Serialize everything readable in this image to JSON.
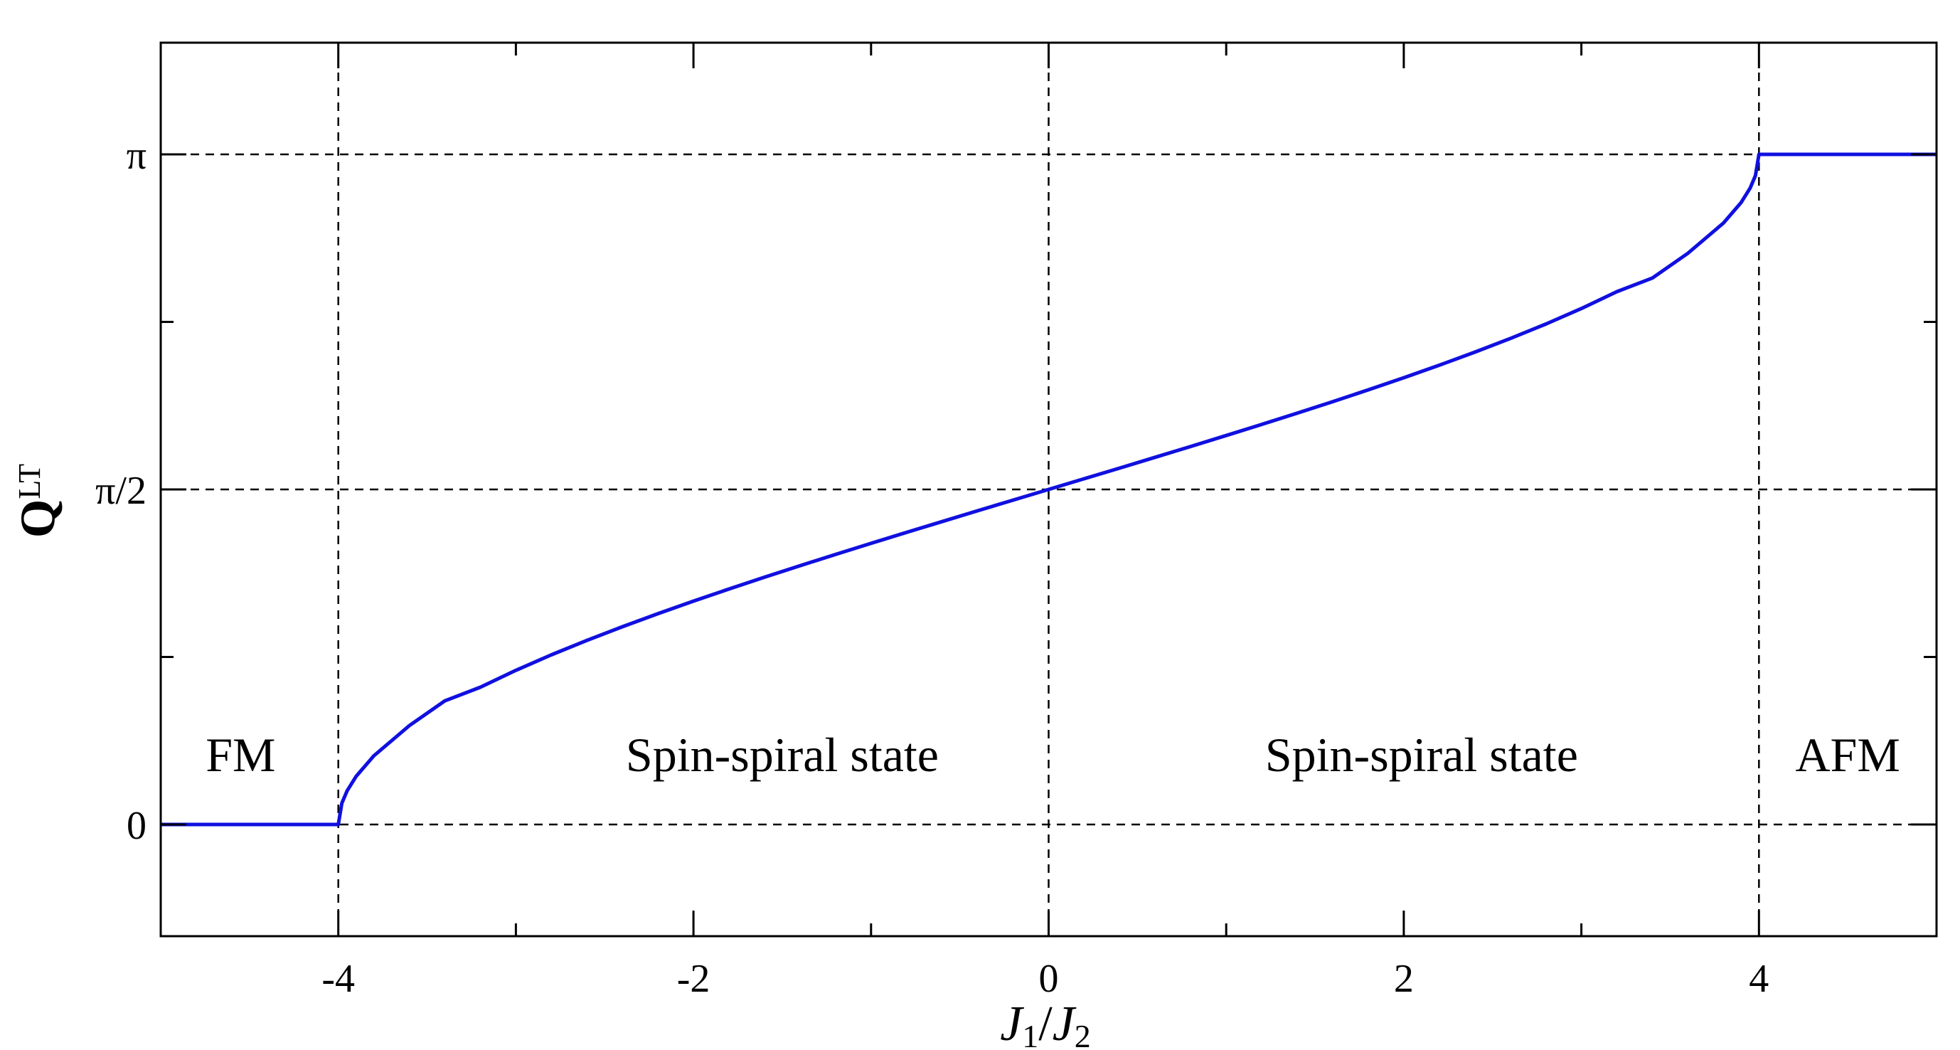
{
  "chart_data": {
    "type": "line",
    "title": "",
    "xlabel": {
      "italic_1": "J",
      "sub_1": "1",
      "sep": "/",
      "italic_2": "J",
      "sub_2": "2"
    },
    "ylabel": {
      "main": "Q",
      "sub": "LT"
    },
    "xlim": [
      -5,
      5
    ],
    "ylim": [
      -0.5236,
      3.6652
    ],
    "x_ticks": [
      {
        "value": -4,
        "label": "-4"
      },
      {
        "value": -2,
        "label": "-2"
      },
      {
        "value": 0,
        "label": "0"
      },
      {
        "value": 2,
        "label": "2"
      },
      {
        "value": 4,
        "label": "4"
      }
    ],
    "x_minor_ticks": [
      -5,
      -3,
      -1,
      1,
      3,
      5
    ],
    "y_ticks": [
      {
        "value": 0,
        "label": "0"
      },
      {
        "value": 1.5708,
        "label": "π/2"
      },
      {
        "value": 3.1416,
        "label": "π"
      }
    ],
    "y_minor_ticks": [
      0.7854,
      2.3562
    ],
    "dashed_lines": {
      "vertical": [
        -4,
        0,
        4
      ],
      "horizontal": [
        0,
        1.5708,
        3.1416
      ]
    },
    "series": [
      {
        "color": "#1010e0",
        "x": [
          -5,
          -4,
          -3.98,
          -3.95,
          -3.9,
          -3.8,
          -3.6,
          -3.4,
          -3.2,
          -3.0,
          -2.8,
          -2.6,
          -2.4,
          -2.2,
          -2.0,
          -1.8,
          -1.6,
          -1.4,
          -1.2,
          -1.0,
          -0.8,
          -0.6,
          -0.4,
          -0.2,
          0,
          0.2,
          0.4,
          0.6,
          0.8,
          1.0,
          1.2,
          1.4,
          1.6,
          1.8,
          2.0,
          2.2,
          2.4,
          2.6,
          2.8,
          3.0,
          3.2,
          3.4,
          3.6,
          3.8,
          3.9,
          3.95,
          3.98,
          4.0,
          5
        ],
        "y": [
          0,
          0,
          0.1002,
          0.1588,
          0.2255,
          0.3218,
          0.4636,
          0.5796,
          0.6435,
          0.7227,
          0.7954,
          0.8632,
          0.9273,
          0.9884,
          1.0472,
          1.104,
          1.1593,
          1.2132,
          1.2661,
          1.3181,
          1.3694,
          1.4202,
          1.4706,
          1.5208,
          1.5708,
          1.6208,
          1.671,
          1.7214,
          1.7722,
          1.8235,
          1.8755,
          1.9284,
          1.9823,
          2.0376,
          2.0944,
          2.1532,
          2.2143,
          2.2784,
          2.3462,
          2.4189,
          2.4981,
          2.562,
          2.678,
          2.8198,
          2.9161,
          2.9828,
          3.0414,
          3.1416,
          3.1416
        ]
      }
    ],
    "annotations": [
      {
        "text": "FM",
        "x": -4.55,
        "y": 0.25
      },
      {
        "text": "Spin-spiral state",
        "x": -1.5,
        "y": 0.25
      },
      {
        "text": "Spin-spiral state",
        "x": 2.1,
        "y": 0.25
      },
      {
        "text": "AFM",
        "x": 4.5,
        "y": 0.25
      }
    ],
    "grid": false,
    "legend": "none"
  }
}
